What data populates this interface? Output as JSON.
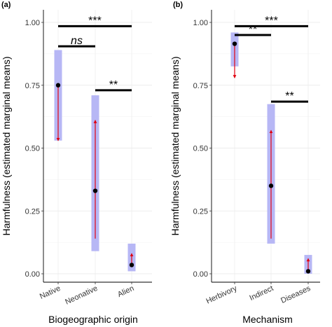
{
  "chart_data": [
    {
      "panel": "(a)",
      "type": "interval",
      "ylabel": "Harmfulness (estimated marginal means)",
      "xlabel": "Biogeographic origin",
      "ylim": [
        0,
        1
      ],
      "yticks": [
        "0.00",
        "0.25",
        "0.50",
        "0.75",
        "1.00"
      ],
      "grid": true,
      "categories": [
        "Native",
        "Neonative",
        "Alien"
      ],
      "points": [
        {
          "category": "Native",
          "mean": 0.75,
          "ci": [
            0.53,
            0.89
          ],
          "arrow": {
            "from": 0.75,
            "to": 0.53
          }
        },
        {
          "category": "Neonative",
          "mean": 0.33,
          "ci": [
            0.09,
            0.71
          ],
          "arrow": {
            "from": 0.14,
            "to": 0.61
          }
        },
        {
          "category": "Alien",
          "mean": 0.035,
          "ci": [
            0.01,
            0.12
          ],
          "arrow": {
            "from": 0.035,
            "to": 0.08
          }
        }
      ],
      "brackets": [
        {
          "from": "Native",
          "to": "Neonative",
          "y": 0.905,
          "label": "ns"
        },
        {
          "from": "Native",
          "to": "Alien",
          "y": 0.985,
          "label": "***"
        },
        {
          "from": "Neonative",
          "to": "Alien",
          "y": 0.73,
          "label": "**"
        }
      ],
      "colors": {
        "ci": "#b7b7f5",
        "arrow": "#e0000f",
        "point": "#000000",
        "bracket": "#000000"
      }
    },
    {
      "panel": "(b)",
      "type": "interval",
      "ylabel": "Harmfulness (estimated marginal means)",
      "xlabel": "Mechanism",
      "ylim": [
        0,
        1
      ],
      "yticks": [
        "0.00",
        "0.25",
        "0.50",
        "0.75",
        "1.00"
      ],
      "grid": true,
      "categories": [
        "Herbivory",
        "Indirect",
        "Diseases"
      ],
      "points": [
        {
          "category": "Herbivory",
          "mean": 0.915,
          "ci": [
            0.825,
            0.96
          ],
          "arrow": {
            "from": 0.915,
            "to": 0.78
          }
        },
        {
          "category": "Indirect",
          "mean": 0.35,
          "ci": [
            0.12,
            0.675
          ],
          "arrow": {
            "from": 0.14,
            "to": 0.57
          }
        },
        {
          "category": "Diseases",
          "mean": 0.01,
          "ci": [
            0.0,
            0.075
          ],
          "arrow": {
            "from": 0.01,
            "to": 0.06
          }
        }
      ],
      "brackets": [
        {
          "from": "Herbivory",
          "to": "Indirect",
          "y": 0.985,
          "label": "***",
          "xend": "Diseases"
        },
        {
          "from": "Herbivory",
          "to": "Indirect",
          "y": 0.95,
          "label": "**"
        },
        {
          "from": "Indirect",
          "to": "Diseases",
          "y": 0.685,
          "label": "**"
        }
      ],
      "colors": {
        "ci": "#b7b7f5",
        "arrow": "#e0000f",
        "point": "#000000",
        "bracket": "#000000"
      }
    }
  ]
}
